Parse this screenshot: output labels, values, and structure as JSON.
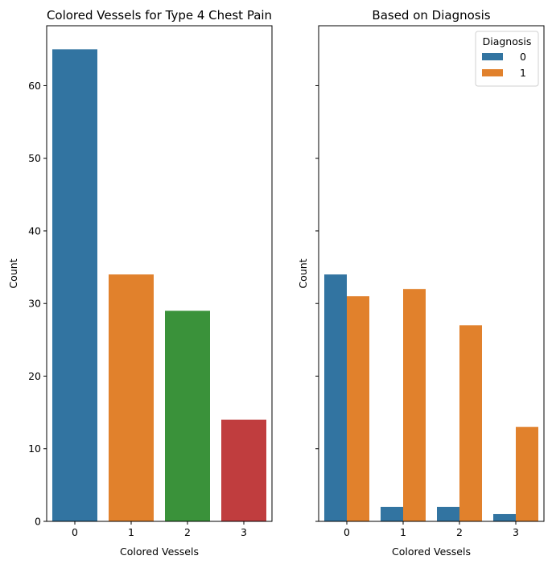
{
  "chart_data": [
    {
      "type": "bar",
      "title": "Colored Vessels for Type 4 Chest Pain",
      "xlabel": "Colored Vessels",
      "ylabel": "Count",
      "categories": [
        "0",
        "1",
        "2",
        "3"
      ],
      "values": [
        65,
        34,
        29,
        14
      ],
      "colors": [
        "#3274a1",
        "#e1812c",
        "#3a923a",
        "#c03d3e"
      ],
      "ylim": [
        0,
        68.25
      ],
      "yticks": [
        0,
        10,
        20,
        30,
        40,
        50,
        60
      ],
      "grid": false
    },
    {
      "type": "bar",
      "title": "Based on Diagnosis",
      "xlabel": "Colored Vessels",
      "ylabel": "Count",
      "categories": [
        "0",
        "1",
        "2",
        "3"
      ],
      "series": [
        {
          "name": "0",
          "values": [
            34,
            2,
            2,
            1
          ],
          "color": "#3274a1"
        },
        {
          "name": "1",
          "values": [
            31,
            32,
            27,
            13
          ],
          "color": "#e1812c"
        }
      ],
      "legend": {
        "title": "Diagnosis",
        "placement": "top-right"
      },
      "ylim": [
        0,
        68.25
      ],
      "yticks": [
        0,
        10,
        20,
        30,
        40,
        50,
        60
      ],
      "sharey": true,
      "grid": false
    }
  ]
}
